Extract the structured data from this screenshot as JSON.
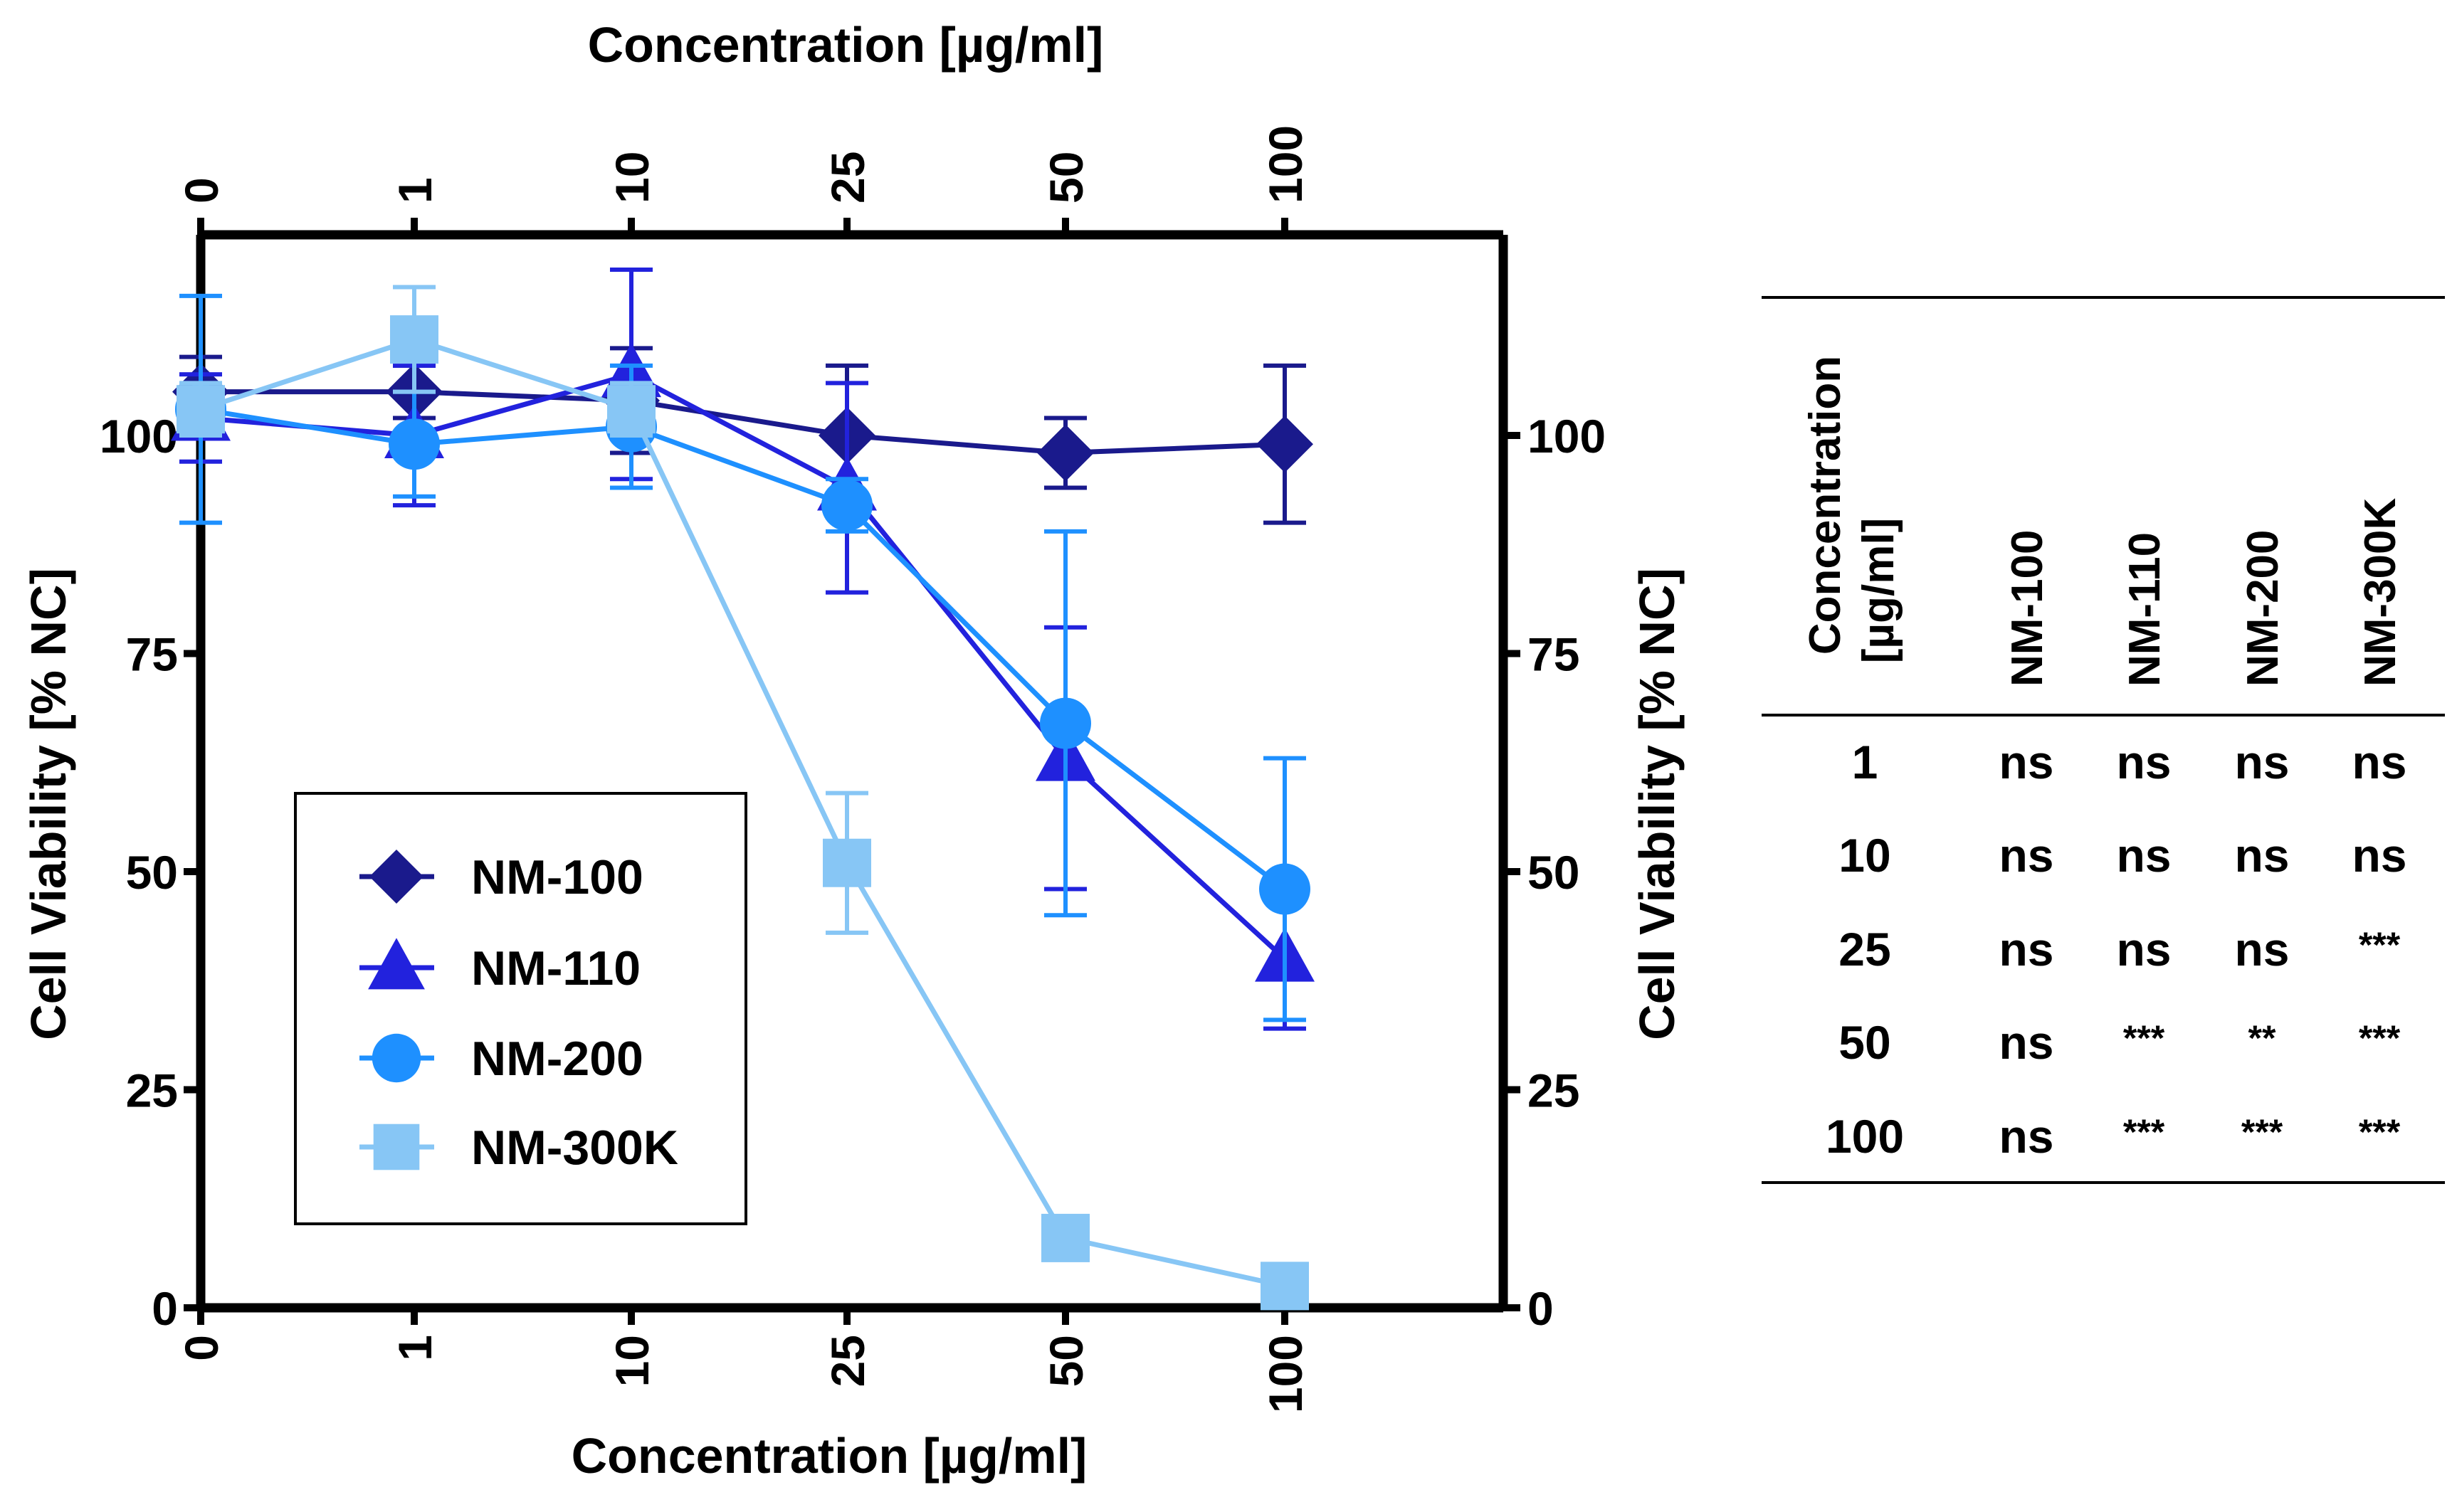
{
  "chart_data": {
    "type": "line",
    "x_axis_label_bottom": "Concentration [µg/ml]",
    "x_axis_label_top": "Concentration [µg/ml]",
    "y_axis_label_left": "Cell Viability [% NC]",
    "y_axis_label_right": "Cell Viability [% NC]",
    "categories": [
      "0",
      "1",
      "10",
      "25",
      "50",
      "100"
    ],
    "y_ticks": [
      "0",
      "25",
      "50",
      "75",
      "100"
    ],
    "ylim": [
      0,
      123
    ],
    "series": [
      {
        "name": "NM-100",
        "color": "#1a1a8c",
        "marker": "diamond",
        "values": [
          105,
          105,
          104,
          100,
          98,
          99
        ],
        "err": [
          4,
          3,
          6,
          8,
          4,
          9
        ]
      },
      {
        "name": "NM-110",
        "color": "#2222dd",
        "marker": "triangle",
        "values": [
          102,
          100,
          107,
          94,
          63,
          40
        ],
        "err": [
          5,
          8,
          12,
          12,
          15,
          8
        ]
      },
      {
        "name": "NM-200",
        "color": "#1e90ff",
        "marker": "circle",
        "values": [
          103,
          99,
          101,
          92,
          67,
          48
        ],
        "err": [
          13,
          6,
          7,
          3,
          22,
          15
        ]
      },
      {
        "name": "NM-300K",
        "color": "#87c6f5",
        "marker": "square",
        "values": [
          103,
          111,
          103,
          51,
          8,
          2.5
        ],
        "err": [
          3,
          6,
          3,
          8,
          0,
          0
        ]
      }
    ]
  },
  "table": {
    "header_concentration": "Concentration",
    "header_unit": "[µg/ml]",
    "header_cols": [
      "NM-100",
      "NM-110",
      "NM-200",
      "NM-300K"
    ],
    "rows": [
      {
        "conc": "1",
        "vals": [
          "ns",
          "ns",
          "ns",
          "ns"
        ]
      },
      {
        "conc": "10",
        "vals": [
          "ns",
          "ns",
          "ns",
          "ns"
        ]
      },
      {
        "conc": "25",
        "vals": [
          "ns",
          "ns",
          "ns",
          "***"
        ]
      },
      {
        "conc": "50",
        "vals": [
          "ns",
          "***",
          "**",
          "***"
        ]
      },
      {
        "conc": "100",
        "vals": [
          "ns",
          "***",
          "***",
          "***"
        ]
      }
    ]
  }
}
